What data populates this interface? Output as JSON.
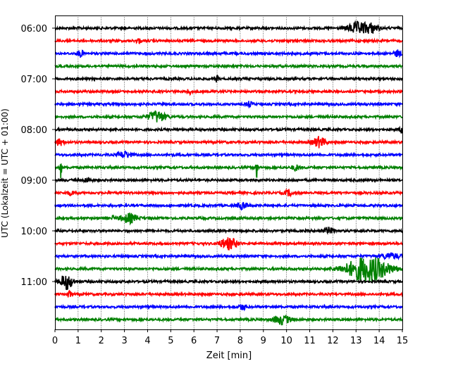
{
  "chart_data": {
    "type": "line",
    "subtype": "seismogram-helicorder",
    "xlabel": "Zeit  [min]",
    "ylabel": "UTC (Lokalzeit = UTC + 01:00)",
    "xlim": [
      0,
      15
    ],
    "x_ticks": [
      "0",
      "1",
      "2",
      "3",
      "4",
      "5",
      "6",
      "7",
      "8",
      "9",
      "10",
      "11",
      "12",
      "13",
      "14",
      "15"
    ],
    "y_tick_labels": [
      "06:00",
      "07:00",
      "08:00",
      "09:00",
      "10:00",
      "11:00"
    ],
    "grid": "vertical dotted lines at each minute",
    "trace_colors": [
      "#000000",
      "#ff0000",
      "#0000ff",
      "#008000"
    ],
    "trace_start_times": [
      "06:00",
      "06:15",
      "06:30",
      "06:45",
      "07:00",
      "07:15",
      "07:30",
      "07:45",
      "08:00",
      "08:15",
      "08:30",
      "08:45",
      "09:00",
      "09:15",
      "09:30",
      "09:45",
      "10:00",
      "10:15",
      "10:30",
      "10:45",
      "11:00",
      "11:15",
      "11:30",
      "11:45"
    ],
    "events": [
      {
        "trace": 0,
        "minute": 13.1,
        "amplitude": 0.45,
        "duration": 1.0
      },
      {
        "trace": 0,
        "minute": 13.7,
        "amplitude": 0.3,
        "duration": 0.6
      },
      {
        "trace": 1,
        "minute": 3.6,
        "amplitude": 0.2,
        "duration": 0.2
      },
      {
        "trace": 2,
        "minute": 1.1,
        "amplitude": 0.25,
        "duration": 0.3
      },
      {
        "trace": 2,
        "minute": 14.8,
        "amplitude": 0.25,
        "duration": 0.3
      },
      {
        "trace": 5,
        "minute": 5.8,
        "amplitude": 0.2,
        "duration": 0.2
      },
      {
        "trace": 4,
        "minute": 7.0,
        "amplitude": 0.35,
        "duration": 0.1
      },
      {
        "trace": 6,
        "minute": 8.4,
        "amplitude": 0.2,
        "duration": 0.3
      },
      {
        "trace": 7,
        "minute": 4.4,
        "amplitude": 0.45,
        "duration": 0.8
      },
      {
        "trace": 8,
        "minute": 15.0,
        "amplitude": 0.3,
        "duration": 0.2
      },
      {
        "trace": 9,
        "minute": 0.2,
        "amplitude": 0.25,
        "duration": 0.4
      },
      {
        "trace": 9,
        "minute": 11.4,
        "amplitude": 0.4,
        "duration": 0.6
      },
      {
        "trace": 10,
        "minute": 3.0,
        "amplitude": 0.25,
        "duration": 0.6
      },
      {
        "trace": 11,
        "minute": 0.25,
        "amplitude": 0.8,
        "duration": 0.1
      },
      {
        "trace": 11,
        "minute": 8.7,
        "amplitude": 1.3,
        "duration": 0.1
      },
      {
        "trace": 11,
        "minute": 10.4,
        "amplitude": 0.2,
        "duration": 0.4
      },
      {
        "trace": 12,
        "minute": 1.4,
        "amplitude": 0.2,
        "duration": 0.3
      },
      {
        "trace": 13,
        "minute": 0.7,
        "amplitude": 0.15,
        "duration": 0.4
      },
      {
        "trace": 13,
        "minute": 10.1,
        "amplitude": 0.2,
        "duration": 0.4
      },
      {
        "trace": 14,
        "minute": 8.1,
        "amplitude": 0.25,
        "duration": 0.5
      },
      {
        "trace": 15,
        "minute": 3.2,
        "amplitude": 0.35,
        "duration": 0.8
      },
      {
        "trace": 15,
        "minute": 2.5,
        "amplitude": 0.2,
        "duration": 0.1
      },
      {
        "trace": 16,
        "minute": 11.8,
        "amplitude": 0.2,
        "duration": 0.6
      },
      {
        "trace": 17,
        "minute": 7.5,
        "amplitude": 0.45,
        "duration": 0.8
      },
      {
        "trace": 18,
        "minute": 14.5,
        "amplitude": 0.2,
        "duration": 1.0
      },
      {
        "trace": 19,
        "minute": 13.5,
        "amplitude": 1.0,
        "duration": 2.0
      },
      {
        "trace": 20,
        "minute": 0.5,
        "amplitude": 0.6,
        "duration": 0.6
      },
      {
        "trace": 21,
        "minute": 0.6,
        "amplitude": 0.3,
        "duration": 0.2
      },
      {
        "trace": 22,
        "minute": 8.1,
        "amplitude": 0.2,
        "duration": 0.4
      },
      {
        "trace": 23,
        "minute": 9.8,
        "amplitude": 0.35,
        "duration": 0.8
      }
    ]
  }
}
